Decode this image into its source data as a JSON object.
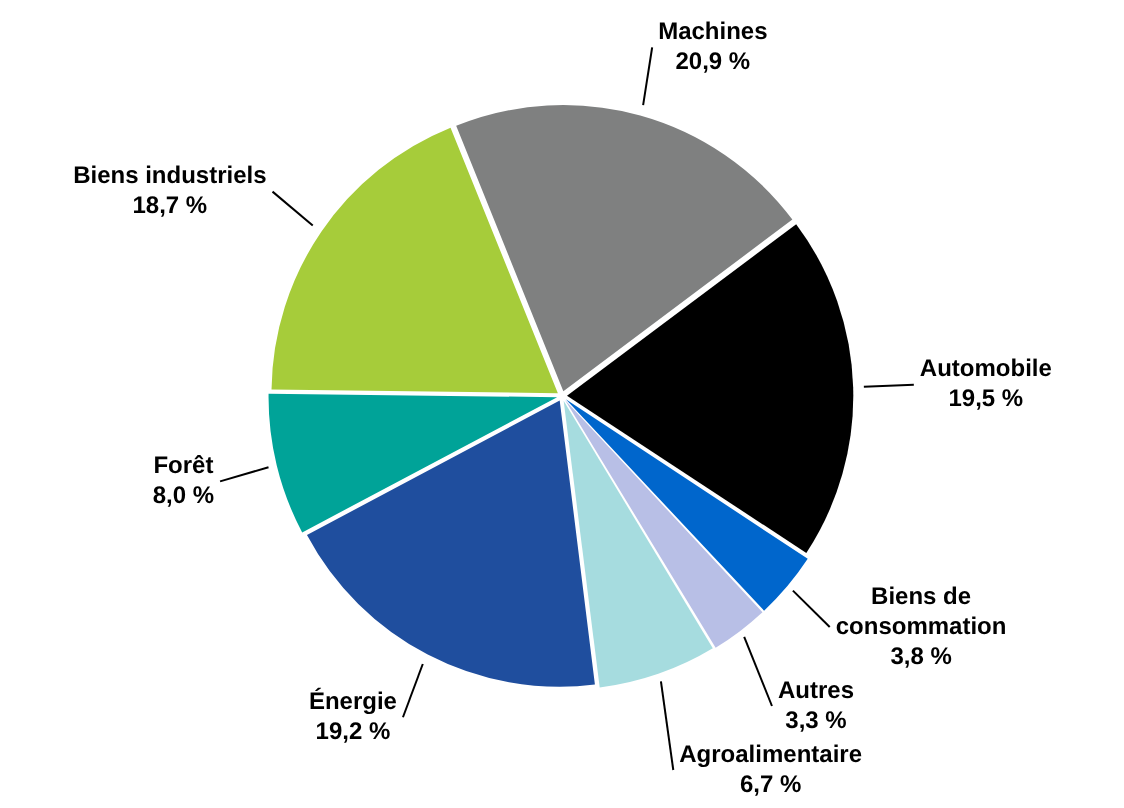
{
  "chart_data": {
    "type": "pie",
    "categories": [
      "Machines",
      "Automobile",
      "Biens de consommation",
      "Autres",
      "Agroalimentaire",
      "Énergie",
      "Forêt",
      "Biens industriels"
    ],
    "values": [
      20.9,
      19.5,
      3.8,
      3.3,
      6.7,
      19.2,
      8.0,
      18.7
    ],
    "colors": [
      "#7f8080",
      "#000000",
      "#0066cc",
      "#b8bfe6",
      "#a6dcdf",
      "#1f4e9e",
      "#00a398",
      "#a6cc3a"
    ],
    "value_labels": [
      "20,9 %",
      "19,5 %",
      "3,8 %",
      "3,3 %",
      "6,7 %",
      "19,2 %",
      "8,0 %",
      "18,7 %"
    ]
  }
}
